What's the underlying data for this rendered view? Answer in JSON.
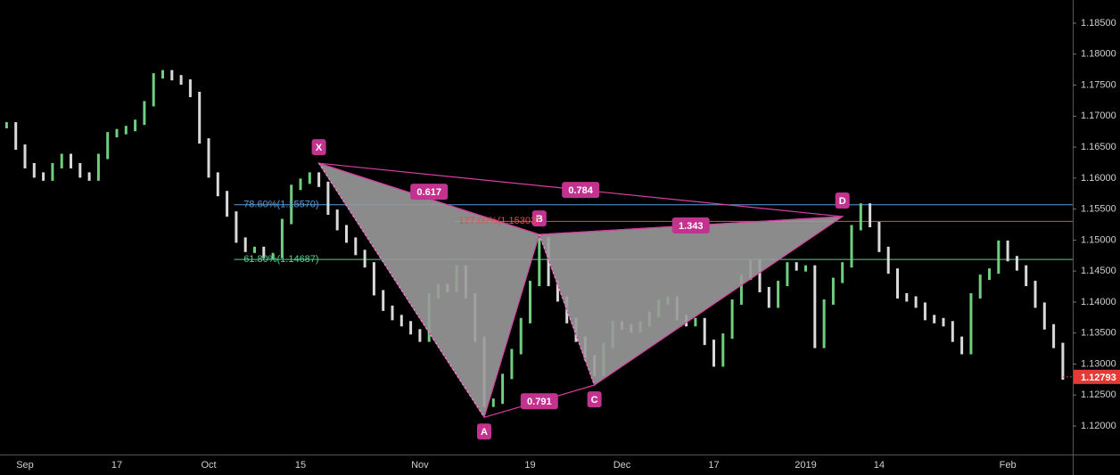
{
  "chart_data": {
    "type": "candlestick",
    "categories": [
      null,
      null,
      "Sep",
      null,
      null,
      null,
      null,
      null,
      null,
      null,
      null,
      null,
      "17",
      null,
      null,
      null,
      null,
      null,
      null,
      null,
      null,
      null,
      "Oct",
      null,
      null,
      null,
      null,
      null,
      null,
      null,
      null,
      null,
      "15",
      null,
      null,
      null,
      null,
      null,
      null,
      null,
      null,
      null,
      null,
      null,
      null,
      "Nov",
      null,
      null,
      null,
      null,
      null,
      null,
      null,
      null,
      null,
      null,
      null,
      "19",
      null,
      null,
      null,
      null,
      null,
      null,
      null,
      null,
      null,
      "Dec",
      null,
      null,
      null,
      null,
      null,
      null,
      null,
      null,
      null,
      "17",
      null,
      null,
      null,
      null,
      null,
      null,
      null,
      null,
      null,
      "2019",
      null,
      null,
      null,
      null,
      null,
      null,
      null,
      "14",
      null,
      null,
      null,
      null,
      null,
      null,
      null,
      null,
      null,
      null,
      null,
      null,
      null,
      "Feb",
      null,
      null,
      null,
      null,
      null,
      null
    ],
    "close": [
      1.1686,
      1.165,
      1.162,
      1.1605,
      1.16,
      1.162,
      1.1635,
      1.162,
      1.1605,
      1.16,
      1.1635,
      1.167,
      1.1675,
      1.168,
      1.169,
      1.172,
      1.1765,
      1.177,
      1.1762,
      1.1755,
      1.1735,
      1.166,
      1.1605,
      1.1575,
      1.1542,
      1.15,
      1.1485,
      1.1485,
      1.1475,
      1.1475,
      1.153,
      1.1585,
      1.1595,
      1.1605,
      1.159,
      1.1545,
      1.152,
      1.15,
      1.148,
      1.146,
      1.1415,
      1.139,
      1.1375,
      1.1365,
      1.1352,
      1.134,
      1.141,
      1.1425,
      1.142,
      1.1455,
      1.141,
      1.134,
      1.1235,
      1.124,
      1.128,
      1.132,
      1.137,
      1.143,
      1.15,
      1.143,
      1.1405,
      1.137,
      1.134,
      1.131,
      1.1285,
      1.133,
      1.1365,
      1.136,
      1.1355,
      1.1365,
      1.138,
      1.14,
      1.1405,
      1.1375,
      1.1365,
      1.137,
      1.1335,
      1.13,
      1.1345,
      1.14,
      1.144,
      1.1465,
      1.142,
      1.1395,
      1.143,
      1.146,
      1.1455,
      1.1455,
      1.133,
      1.14,
      1.1435,
      1.146,
      1.152,
      1.1555,
      1.1525,
      1.1485,
      1.145,
      1.141,
      1.1405,
      1.1395,
      1.1375,
      1.137,
      1.1365,
      1.134,
      1.132,
      1.141,
      1.144,
      1.145,
      1.1495,
      1.147,
      1.1455,
      1.143,
      1.1395,
      1.136,
      1.133,
      1.1279
    ],
    "up_color": "#6fcf7f",
    "down_color": "#d9d9d9",
    "ylim": [
      1.1154,
      1.18874
    ],
    "yticks": [
      {
        "value": 1.12,
        "label": "1.12000"
      },
      {
        "value": 1.125,
        "label": "1.12500"
      },
      {
        "value": 1.13,
        "label": "1.13000"
      },
      {
        "value": 1.135,
        "label": "1.13500"
      },
      {
        "value": 1.14,
        "label": "1.14000"
      },
      {
        "value": 1.145,
        "label": "1.14500"
      },
      {
        "value": 1.15,
        "label": "1.15000"
      },
      {
        "value": 1.155,
        "label": "1.15500"
      },
      {
        "value": 1.16,
        "label": "1.16000"
      },
      {
        "value": 1.165,
        "label": "1.16500"
      },
      {
        "value": 1.17,
        "label": "1.17000"
      },
      {
        "value": 1.175,
        "label": "1.17500"
      },
      {
        "value": 1.18,
        "label": "1.18000"
      },
      {
        "value": 1.185,
        "label": "1.18500"
      }
    ],
    "last_price": 1.12793,
    "last_color": "#e53935",
    "pattern": {
      "color": "#d63fa3",
      "fill": "#9a9a9a",
      "points": [
        {
          "label": "X",
          "at": 34,
          "price": 1.1624
        },
        {
          "label": "A",
          "at": 52,
          "price": 1.1214
        },
        {
          "label": "B",
          "at": 58,
          "price": 1.1509
        },
        {
          "label": "C",
          "at": 64,
          "price": 1.1266
        },
        {
          "label": "D",
          "at": 91,
          "price": 1.1538
        }
      ],
      "ratios": {
        "XB": 0.617,
        "XD": 0.784,
        "BD": 1.343,
        "AC": 0.791
      }
    },
    "levels": [
      {
        "label": "78.60%(1.15570)",
        "price": 1.1557,
        "color": "#5b9bd5"
      },
      {
        "label": "127.00%(1.15303)",
        "price": 1.15303,
        "color": "#e0504f"
      },
      {
        "label": "61.80%(1.14687)",
        "price": 1.14687,
        "color": "#4fd18b"
      }
    ]
  }
}
